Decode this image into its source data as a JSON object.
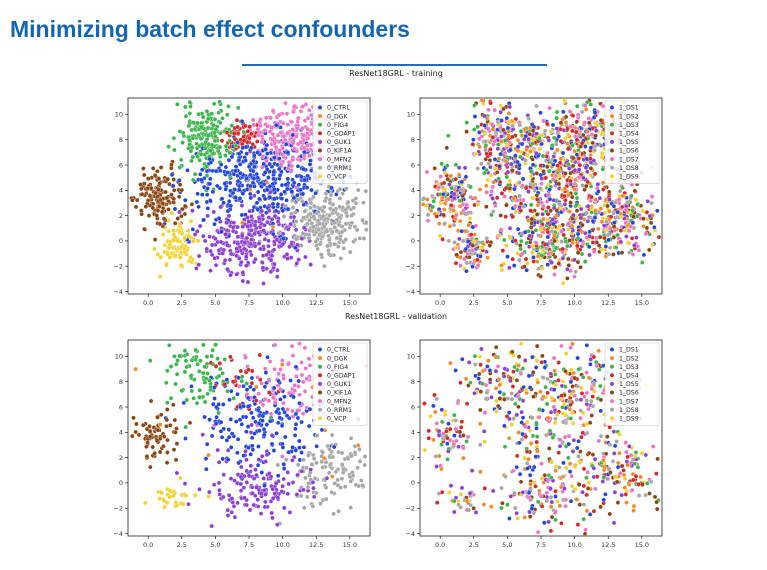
{
  "slide": {
    "title": "Minimizing batch effect confounders",
    "section_training": "ResNet18GRL - training",
    "section_validation": "ResNet18GRL - validation"
  },
  "chart_data": [
    {
      "type": "scatter",
      "title": "",
      "xlabel": "",
      "ylabel": "",
      "xlim": [
        -1.5,
        16.5
      ],
      "ylim": [
        -4.2,
        11.3
      ],
      "xticks": [
        0.0,
        2.5,
        5.0,
        7.5,
        10.0,
        12.5,
        15.0
      ],
      "xtick_labels": [
        "0.0",
        "2.5",
        "5.0",
        "7.5",
        "10.0",
        "12.5",
        "15.0"
      ],
      "yticks": [
        -4,
        -2,
        0,
        2,
        4,
        6,
        8,
        10
      ],
      "ytick_labels": [
        "−4",
        "−2",
        "0",
        "2",
        "4",
        "6",
        "8",
        "10"
      ],
      "legend_position": "top-right",
      "grid": false,
      "series": [
        {
          "name": "0_CTRL",
          "color": "#2345d8",
          "clusters": [
            {
              "cx": 8.5,
              "cy": 4.8,
              "sx": 2.8,
              "sy": 1.7,
              "n": 420
            }
          ]
        },
        {
          "name": "0_DGK",
          "color": "#f08a2b",
          "clusters": [
            {
              "cx": 8.5,
              "cy": 4.5,
              "sx": 3.5,
              "sy": 2.5,
              "n": 6
            }
          ]
        },
        {
          "name": "0_FIG4",
          "color": "#3ab54a",
          "clusters": [
            {
              "cx": 4.3,
              "cy": 8.2,
              "sx": 1.1,
              "sy": 1.4,
              "n": 190
            }
          ]
        },
        {
          "name": "0_GDAP1",
          "color": "#d62728",
          "clusters": [
            {
              "cx": 6.9,
              "cy": 8.3,
              "sx": 0.7,
              "sy": 0.6,
              "n": 60
            }
          ]
        },
        {
          "name": "0_GUK1",
          "color": "#8c3fd0",
          "clusters": [
            {
              "cx": 8.0,
              "cy": 0.1,
              "sx": 1.9,
              "sy": 1.4,
              "n": 300
            }
          ]
        },
        {
          "name": "0_KIF1A",
          "color": "#8b4513",
          "clusters": [
            {
              "cx": 0.8,
              "cy": 3.4,
              "sx": 0.95,
              "sy": 1.1,
              "n": 150
            }
          ]
        },
        {
          "name": "0_MFN2",
          "color": "#ec74c6",
          "clusters": [
            {
              "cx": 10.6,
              "cy": 8.4,
              "sx": 1.5,
              "sy": 1.3,
              "n": 220
            }
          ]
        },
        {
          "name": "0_RRM1",
          "color": "#a6a6a6",
          "clusters": [
            {
              "cx": 13.3,
              "cy": 1.5,
              "sx": 1.6,
              "sy": 1.3,
              "n": 260
            }
          ]
        },
        {
          "name": "0_VCP",
          "color": "#f2d22e",
          "clusters": [
            {
              "cx": 2.2,
              "cy": -0.4,
              "sx": 0.7,
              "sy": 0.9,
              "n": 90
            }
          ]
        }
      ]
    },
    {
      "type": "scatter",
      "title": "",
      "xlabel": "",
      "ylabel": "",
      "xlim": [
        -1.5,
        16.5
      ],
      "ylim": [
        -4.2,
        11.3
      ],
      "xticks": [
        0.0,
        2.5,
        5.0,
        7.5,
        10.0,
        12.5,
        15.0
      ],
      "xtick_labels": [
        "0.0",
        "2.5",
        "5.0",
        "7.5",
        "10.0",
        "12.5",
        "15.0"
      ],
      "yticks": [
        -4,
        -2,
        0,
        2,
        4,
        6,
        8,
        10
      ],
      "ytick_labels": [
        "−4",
        "−2",
        "0",
        "2",
        "4",
        "6",
        "8",
        "10"
      ],
      "legend_position": "top-right",
      "grid": false,
      "mixed": true,
      "series": [
        {
          "name": "1_DS1",
          "color": "#2345d8"
        },
        {
          "name": "1_DS2",
          "color": "#f08a2b"
        },
        {
          "name": "1_DS3",
          "color": "#3ab54a"
        },
        {
          "name": "1_DS4",
          "color": "#d62728"
        },
        {
          "name": "1_DS5",
          "color": "#8c3fd0"
        },
        {
          "name": "1_DS6",
          "color": "#8b4513"
        },
        {
          "name": "1_DS7",
          "color": "#ec74c6"
        },
        {
          "name": "1_DS8",
          "color": "#a6a6a6"
        },
        {
          "name": "1_DS9",
          "color": "#f2d22e"
        }
      ],
      "mixed_regions": [
        {
          "cx": 8.5,
          "cy": 4.8,
          "sx": 2.8,
          "sy": 1.7,
          "n": 420
        },
        {
          "cx": 4.3,
          "cy": 8.2,
          "sx": 1.1,
          "sy": 1.4,
          "n": 190
        },
        {
          "cx": 6.9,
          "cy": 8.3,
          "sx": 0.7,
          "sy": 0.6,
          "n": 60
        },
        {
          "cx": 8.0,
          "cy": 0.1,
          "sx": 1.9,
          "sy": 1.4,
          "n": 300
        },
        {
          "cx": 0.8,
          "cy": 3.4,
          "sx": 0.95,
          "sy": 1.1,
          "n": 150
        },
        {
          "cx": 10.6,
          "cy": 8.4,
          "sx": 1.5,
          "sy": 1.3,
          "n": 220
        },
        {
          "cx": 13.3,
          "cy": 1.5,
          "sx": 1.6,
          "sy": 1.3,
          "n": 260
        },
        {
          "cx": 2.2,
          "cy": -0.4,
          "sx": 0.7,
          "sy": 0.9,
          "n": 90
        }
      ]
    },
    {
      "type": "scatter",
      "title": "",
      "xlabel": "",
      "ylabel": "",
      "xlim": [
        -1.5,
        16.5
      ],
      "ylim": [
        -4.2,
        11.3
      ],
      "xticks": [
        0.0,
        2.5,
        5.0,
        7.5,
        10.0,
        12.5,
        15.0
      ],
      "xtick_labels": [
        "0.0",
        "2.5",
        "5.0",
        "7.5",
        "10.0",
        "12.5",
        "15.0"
      ],
      "yticks": [
        -4,
        -2,
        0,
        2,
        4,
        6,
        8,
        10
      ],
      "ytick_labels": [
        "−4",
        "−2",
        "0",
        "2",
        "4",
        "6",
        "8",
        "10"
      ],
      "legend_position": "top-right",
      "grid": false,
      "series": [
        {
          "name": "0_CTRL",
          "color": "#2345d8",
          "clusters": [
            {
              "cx": 8.3,
              "cy": 5.0,
              "sx": 2.6,
              "sy": 2.2,
              "n": 200
            }
          ]
        },
        {
          "name": "0_DGK",
          "color": "#f08a2b",
          "clusters": [
            {
              "cx": 8.0,
              "cy": 4.5,
              "sx": 4.0,
              "sy": 3.0,
              "n": 12
            }
          ]
        },
        {
          "name": "0_FIG4",
          "color": "#3ab54a",
          "clusters": [
            {
              "cx": 4.3,
              "cy": 8.5,
              "sx": 1.5,
              "sy": 1.4,
              "n": 90
            }
          ]
        },
        {
          "name": "0_GDAP1",
          "color": "#d62728",
          "clusters": [
            {
              "cx": 7.0,
              "cy": 7.5,
              "sx": 1.5,
              "sy": 1.5,
              "n": 25
            }
          ]
        },
        {
          "name": "0_GUK1",
          "color": "#8c3fd0",
          "clusters": [
            {
              "cx": 8.0,
              "cy": -0.5,
              "sx": 2.0,
              "sy": 1.6,
              "n": 150
            }
          ]
        },
        {
          "name": "0_KIF1A",
          "color": "#8b4513",
          "clusters": [
            {
              "cx": 0.6,
              "cy": 4.0,
              "sx": 1.0,
              "sy": 1.2,
              "n": 70
            }
          ]
        },
        {
          "name": "0_MFN2",
          "color": "#ec74c6",
          "clusters": [
            {
              "cx": 11.0,
              "cy": 8.0,
              "sx": 1.8,
              "sy": 1.8,
              "n": 110
            }
          ]
        },
        {
          "name": "0_RRM1",
          "color": "#a6a6a6",
          "clusters": [
            {
              "cx": 13.5,
              "cy": 0.8,
              "sx": 1.7,
              "sy": 1.4,
              "n": 120
            }
          ]
        },
        {
          "name": "0_VCP",
          "color": "#f2d22e",
          "clusters": [
            {
              "cx": 1.8,
              "cy": -1.3,
              "sx": 0.9,
              "sy": 0.5,
              "n": 30
            }
          ]
        }
      ]
    },
    {
      "type": "scatter",
      "title": "",
      "xlabel": "",
      "ylabel": "",
      "xlim": [
        -1.5,
        16.5
      ],
      "ylim": [
        -4.2,
        11.3
      ],
      "xticks": [
        0.0,
        2.5,
        5.0,
        7.5,
        10.0,
        12.5,
        15.0
      ],
      "xtick_labels": [
        "0.0",
        "2.5",
        "5.0",
        "7.5",
        "10.0",
        "12.5",
        "15.0"
      ],
      "yticks": [
        -4,
        -2,
        0,
        2,
        4,
        6,
        8,
        10
      ],
      "ytick_labels": [
        "−4",
        "−2",
        "0",
        "2",
        "4",
        "6",
        "8",
        "10"
      ],
      "legend_position": "top-right",
      "grid": false,
      "mixed": true,
      "series": [
        {
          "name": "1_DS1",
          "color": "#2345d8"
        },
        {
          "name": "1_DS2",
          "color": "#f08a2b"
        },
        {
          "name": "1_DS3",
          "color": "#3ab54a"
        },
        {
          "name": "1_DS4",
          "color": "#d62728"
        },
        {
          "name": "1_DS5",
          "color": "#8c3fd0"
        },
        {
          "name": "1_DS6",
          "color": "#8b4513"
        },
        {
          "name": "1_DS7",
          "color": "#ec74c6"
        },
        {
          "name": "1_DS8",
          "color": "#a6a6a6"
        },
        {
          "name": "1_DS9",
          "color": "#f2d22e"
        }
      ],
      "mixed_regions": [
        {
          "cx": 8.3,
          "cy": 5.0,
          "sx": 2.6,
          "sy": 2.2,
          "n": 200
        },
        {
          "cx": 4.3,
          "cy": 8.5,
          "sx": 1.5,
          "sy": 1.4,
          "n": 90
        },
        {
          "cx": 7.0,
          "cy": 7.5,
          "sx": 1.5,
          "sy": 1.5,
          "n": 25
        },
        {
          "cx": 8.0,
          "cy": -0.5,
          "sx": 2.0,
          "sy": 1.6,
          "n": 150
        },
        {
          "cx": 0.6,
          "cy": 4.0,
          "sx": 1.0,
          "sy": 1.2,
          "n": 70
        },
        {
          "cx": 11.0,
          "cy": 8.0,
          "sx": 1.8,
          "sy": 1.8,
          "n": 110
        },
        {
          "cx": 13.5,
          "cy": 0.8,
          "sx": 1.7,
          "sy": 1.4,
          "n": 120
        },
        {
          "cx": 1.8,
          "cy": -1.3,
          "sx": 0.9,
          "sy": 0.5,
          "n": 30
        }
      ]
    }
  ]
}
